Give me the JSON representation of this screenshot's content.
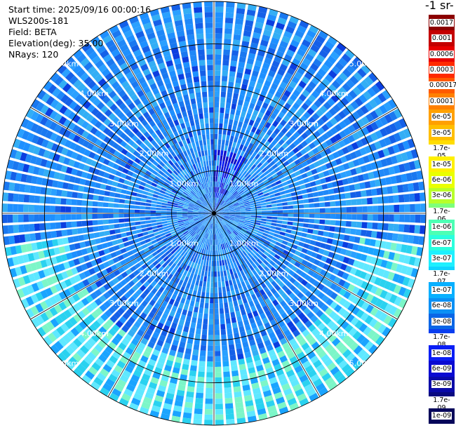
{
  "header": {
    "start_time": "Start time: 2025/09/16 00:00:16",
    "instrument": "WLS200s-181",
    "field": "Field: BETA",
    "elevation": "Elevation(deg): 35.00",
    "nrays": "NRays: 120"
  },
  "colorbar": {
    "title": "-1 sr-",
    "labels": [
      "0.0017",
      "0.001",
      "0.0006",
      "0.0003",
      "0.00017",
      "0.0001",
      "6e-05",
      "3e-05",
      "1.7e-05",
      "1e-05",
      "6e-06",
      "3e-06",
      "1.7e-06",
      "1e-06",
      "6e-07",
      "3e-07",
      "1.7e-07",
      "1e-07",
      "6e-08",
      "3e-08",
      "1.7e-08",
      "1e-08",
      "6e-09",
      "3e-09",
      "1.7e-09",
      "1e-09"
    ],
    "colors": [
      "#8b0000",
      "#c40000",
      "#e80000",
      "#ff2a00",
      "#ff5a00",
      "#ff8000",
      "#ffa000",
      "#ffbe00",
      "#ffdd00",
      "#fff000",
      "#eaff00",
      "#b8ff2a",
      "#7dff7a",
      "#4cffb4",
      "#2affde",
      "#1ef0ff",
      "#10d4ff",
      "#08b0ff",
      "#0a90f5",
      "#0a66e6",
      "#0a3ef0",
      "#0a1ef5",
      "#0a0ad2",
      "#0a0aa8",
      "#0a0a80",
      "#06065a"
    ]
  },
  "chart_data": {
    "type": "ppi-polar",
    "field": "BETA",
    "elevation_deg": 35.0,
    "nrays": 120,
    "max_range_km": 5.0,
    "range_ring_labels": [
      "1.00km",
      "2.00km",
      "3.00km",
      "4.00km",
      "5.00km"
    ],
    "range_rings_km": [
      1,
      2,
      3,
      4,
      5
    ],
    "color_scale": "log",
    "value_range": [
      1e-09,
      0.0017
    ],
    "dominant_value": 6e-08,
    "enhanced_band": {
      "azimuth_deg": [
        100,
        260
      ],
      "range_km": [
        3.5,
        5.0
      ],
      "value": 2e-07
    },
    "high_values_near_radar": {
      "azimuth_deg": [
        0,
        30
      ],
      "range_km": [
        0,
        1.5
      ],
      "value": 3e-09
    }
  }
}
